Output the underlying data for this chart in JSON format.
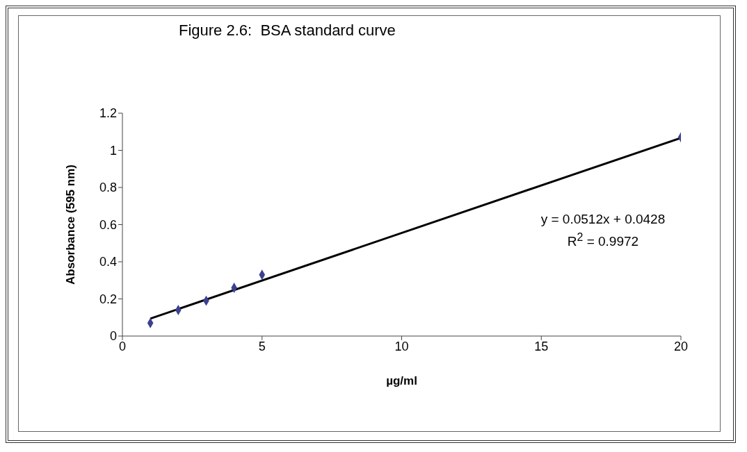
{
  "chart_data": {
    "type": "scatter",
    "title": "Figure 2.6:  BSA standard curve",
    "xlabel": "µg/ml",
    "ylabel": "Absorbance (595 nm)",
    "series": [
      {
        "color": "#3b4190",
        "x": [
          1,
          2,
          3,
          4,
          5,
          20
        ],
        "values": [
          0.07,
          0.14,
          0.19,
          0.26,
          0.33,
          1.07
        ],
        "marker": "diamond"
      },
      {
        "type": "line",
        "color": "#000000",
        "x": [
          1,
          20
        ],
        "values": [
          0.094,
          1.067
        ],
        "marker": "none",
        "line_style": "solid"
      }
    ],
    "annotations": [
      "y = 0.0512x + 0.0428",
      "R$^{2}$ = 0.9972"
    ],
    "xlim": [
      0,
      20
    ],
    "xticks": [
      0,
      5,
      10,
      15,
      20
    ],
    "ylim": [
      0,
      1.2
    ],
    "yticks": [
      0,
      0.2,
      0.4,
      0.6,
      0.8,
      1,
      1.2
    ],
    "grid": false,
    "legend": false
  }
}
